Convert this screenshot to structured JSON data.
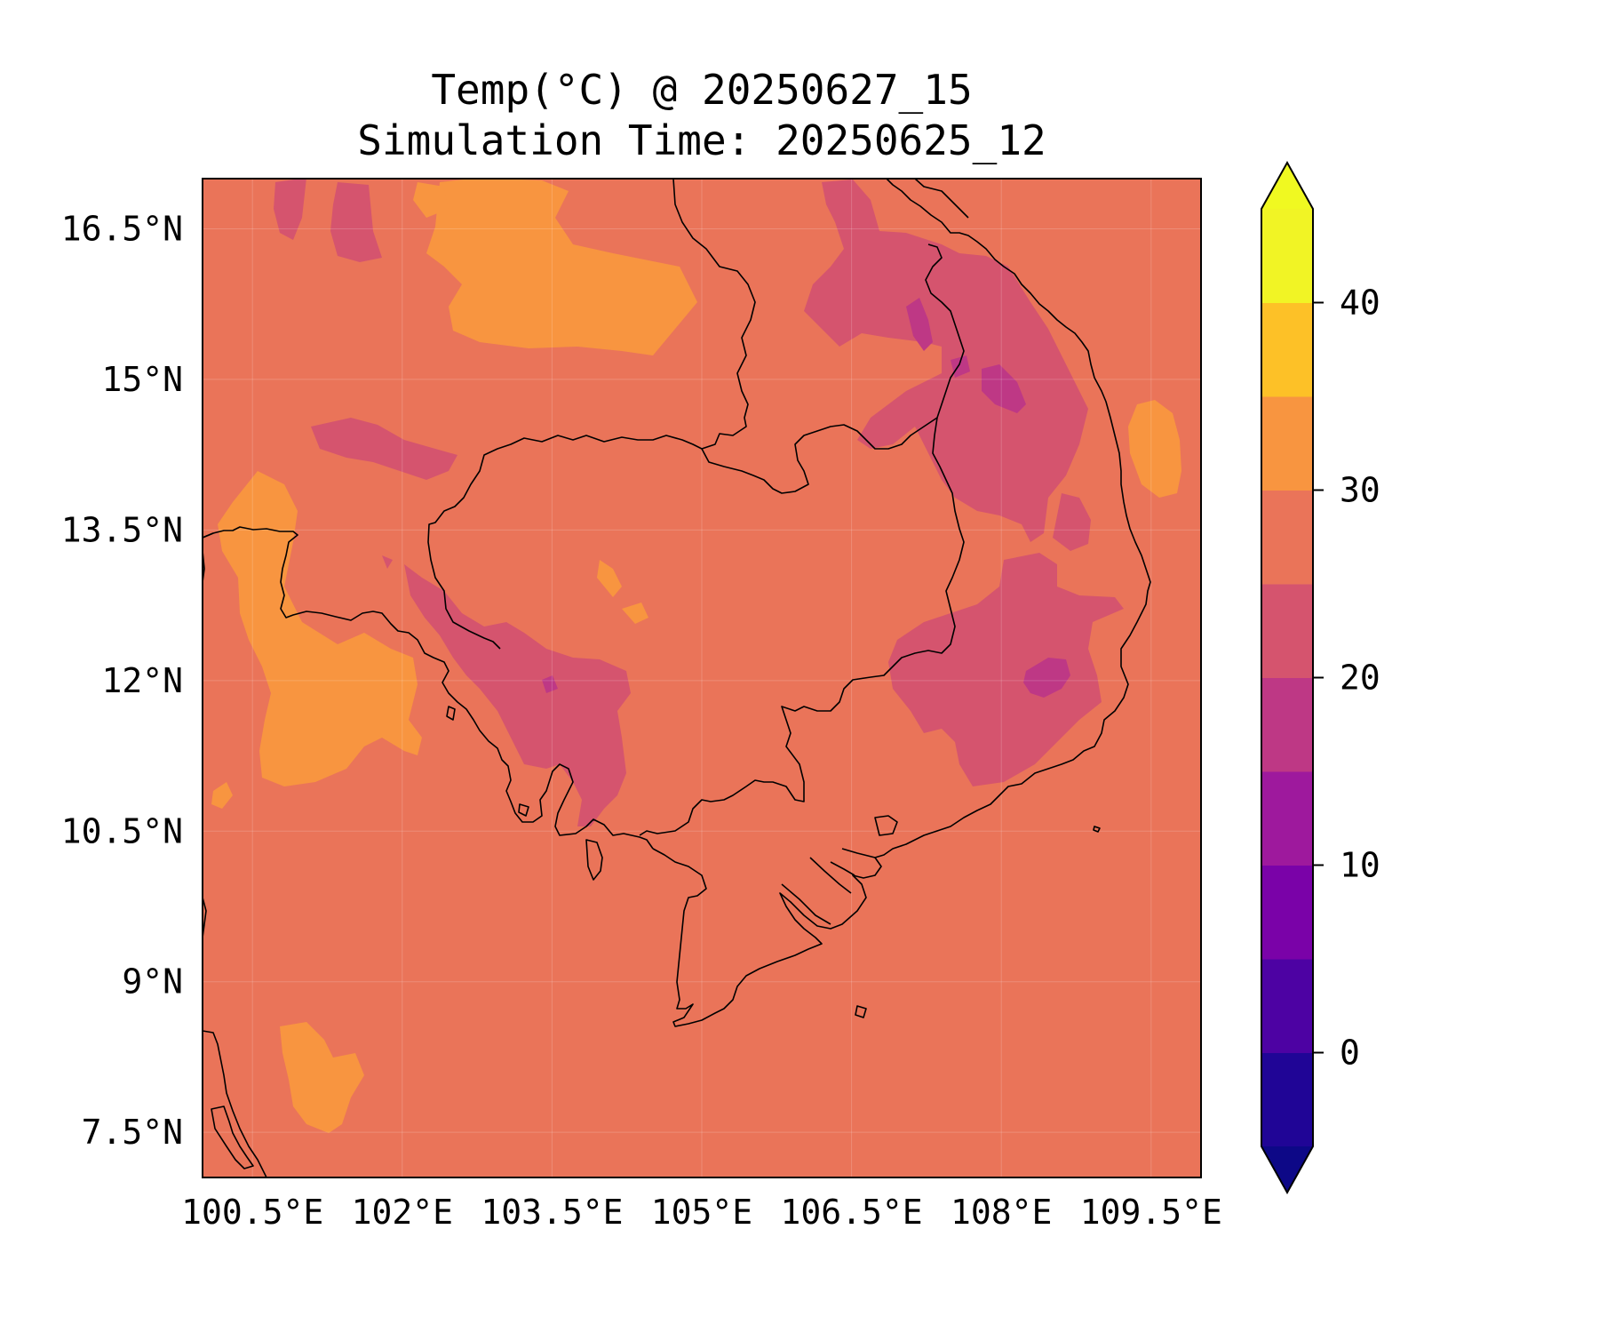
{
  "title": {
    "line1": "Temp(°C) @ 20250627_15",
    "line2": "Simulation Time: 20250625_12"
  },
  "map": {
    "lon_range": [
      100.0,
      110.0
    ],
    "lat_range": [
      7.05,
      17.0
    ],
    "background_color": "#ea7459",
    "grid": true,
    "x_ticks": [
      "100.5°E",
      "102°E",
      "103.5°E",
      "105°E",
      "106.5°E",
      "108°E",
      "109.5°E"
    ],
    "x_tick_values": [
      100.5,
      102,
      103.5,
      105,
      106.5,
      108,
      109.5
    ],
    "y_ticks": [
      "16.5°N",
      "15°N",
      "13.5°N",
      "12°N",
      "10.5°N",
      "9°N",
      "7.5°N"
    ],
    "y_tick_values": [
      16.5,
      15,
      13.5,
      12,
      10.5,
      9,
      7.5
    ]
  },
  "colorbar": {
    "levels": [
      -5,
      0,
      5,
      10,
      15,
      20,
      25,
      30,
      35,
      40,
      45
    ],
    "colors": [
      "#200596",
      "#4d02a3",
      "#7a02a8",
      "#9e199d",
      "#be3885",
      "#d5546e",
      "#ea7459",
      "#f89540",
      "#fdc127",
      "#f1f425"
    ],
    "under_color": "#0d0887",
    "over_color": "#f0f921",
    "tick_values": [
      0,
      10,
      20,
      30,
      40
    ],
    "tick_labels": [
      "0",
      "10",
      "20",
      "30",
      "40"
    ]
  },
  "chart_data": {
    "type": "heatmap",
    "title": "Temp(°C) @ 20250627_15 / Simulation Time: 20250625_12",
    "variable": "Temp(°C)",
    "background_level_range": [
      25,
      30
    ],
    "regions": [
      {
        "level_range": [
          30,
          35
        ],
        "color": "#f89540",
        "area": "north-west (around 102.5–105°E, 15.5–17°N)"
      },
      {
        "level_range": [
          30,
          35
        ],
        "color": "#f89540",
        "area": "west coast (around 100.5–102.5°E, 10.7–13.7°N)"
      },
      {
        "level_range": [
          30,
          35
        ],
        "color": "#f89540",
        "area": "south-west (around 101.2–101.8°E, 7.7–8.4°N)"
      },
      {
        "level_range": [
          30,
          35
        ],
        "color": "#f89540",
        "area": "east coast offshore (around 109.3–109.6°E, 13.9–14.8°N)"
      },
      {
        "level_range": [
          20,
          25
        ],
        "color": "#d5546e",
        "area": "central highlands east (around 106.5–109°E, 10.8–16.7°N)"
      },
      {
        "level_range": [
          20,
          25
        ],
        "color": "#d5546e",
        "area": "south-west Cambodia (around 102.8–104.5°E, 10.7–12.8°N)"
      },
      {
        "level_range": [
          15,
          20
        ],
        "color": "#be3885",
        "area": "small cores (around 108°E, 14.8°N and 108.4°E, 11.8°N)"
      }
    ]
  }
}
